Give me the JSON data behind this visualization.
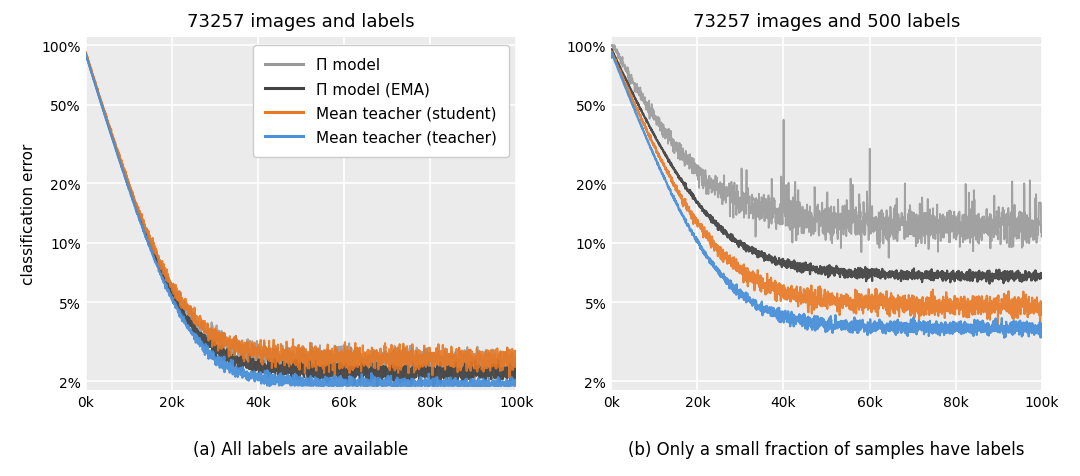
{
  "title_left": "73257 images and labels",
  "title_right": "73257 images and 500 labels",
  "caption_left": "(a) All labels are available",
  "caption_right": "(b) Only a small fraction of samples have labels",
  "ylabel": "classification error",
  "xlabel_ticks": [
    "0k",
    "20k",
    "40k",
    "60k",
    "80k",
    "100k"
  ],
  "x_max": 100000,
  "colors": {
    "pi_model": "#999999",
    "pi_model_ema": "#444444",
    "mean_teacher_student": "#E87722",
    "mean_teacher_teacher": "#4A90D9"
  },
  "legend_labels": [
    "Π model",
    "Π model (EMA)",
    "Mean teacher (student)",
    "Mean teacher (teacher)"
  ],
  "yticks": [
    0.02,
    0.05,
    0.1,
    0.2,
    0.5,
    1.0
  ],
  "ytick_labels": [
    "2%",
    "5%",
    "10%",
    "20%",
    "50%",
    "100%"
  ],
  "ylim_log_min": 0.018,
  "ylim_log_max": 1.1,
  "background_color": "#ffffff",
  "plot_bg_color": "#ebebeb",
  "grid_color": "#ffffff",
  "title_fontsize": 13,
  "label_fontsize": 11,
  "tick_fontsize": 10,
  "legend_fontsize": 11,
  "caption_fontsize": 12
}
